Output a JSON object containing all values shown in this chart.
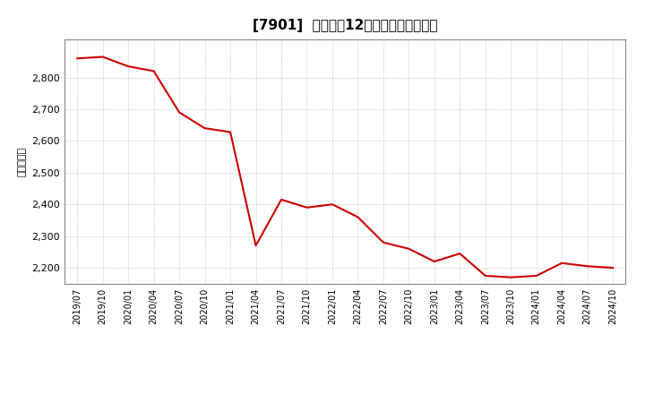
{
  "title": "[7901]  売上高の12か月移動合計の推移",
  "ylabel": "（百万円）",
  "line_color": "#cc0000",
  "background_color": "#ffffff",
  "plot_bg_color": "#ffffff",
  "grid_color": "#aaaaaa",
  "ylim": [
    2150,
    2920
  ],
  "yticks": [
    2200,
    2300,
    2400,
    2500,
    2600,
    2700,
    2800
  ],
  "dates": [
    "2019/07",
    "2019/10",
    "2020/01",
    "2020/04",
    "2020/07",
    "2020/10",
    "2021/01",
    "2021/04",
    "2021/07",
    "2021/10",
    "2022/01",
    "2022/04",
    "2022/07",
    "2022/10",
    "2023/01",
    "2023/04",
    "2023/07",
    "2023/10",
    "2024/01",
    "2024/04",
    "2024/07",
    "2024/10"
  ],
  "values": [
    2860,
    2865,
    2835,
    2820,
    2690,
    2640,
    2628,
    2270,
    2415,
    2390,
    2400,
    2360,
    2280,
    2260,
    2220,
    2245,
    2175,
    2170,
    2175,
    2215,
    2205,
    2200
  ],
  "title_fontsize": 11,
  "ylabel_fontsize": 8,
  "tick_fontsize": 8,
  "xtick_fontsize": 7
}
